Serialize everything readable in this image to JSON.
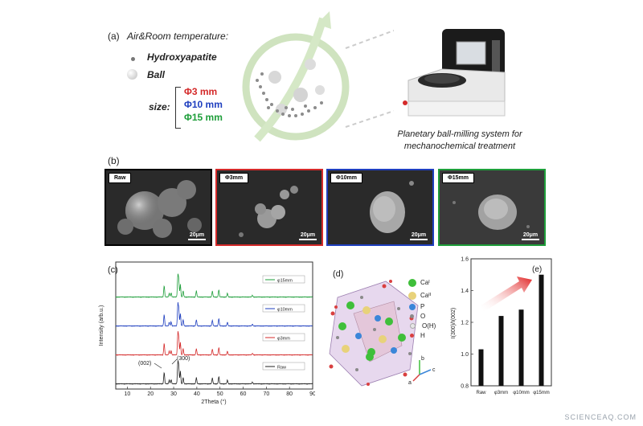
{
  "panel_a": {
    "label": "(a)",
    "condition": "Air&Room temperature:",
    "legend_hydroxyapatite": "Hydroxyapatite",
    "legend_ball": "Ball",
    "size_label": "size:",
    "sizes": [
      {
        "text": "Φ3 mm",
        "color": "#d42a2a"
      },
      {
        "text": "Φ10 mm",
        "color": "#1f3fbf"
      },
      {
        "text": "Φ15 mm",
        "color": "#1e9e3a"
      }
    ],
    "machine_caption_1": "Planetary ball-milling system for",
    "machine_caption_2": "mechanochemical treatment"
  },
  "panel_b": {
    "label": "(b)",
    "images": [
      {
        "tag": "Raw",
        "scale": "20μm",
        "border": "#000000"
      },
      {
        "tag": "Φ3mm",
        "scale": "20μm",
        "border": "#d42a2a"
      },
      {
        "tag": "Φ10mm",
        "scale": "20μm",
        "border": "#1f3fbf"
      },
      {
        "tag": "Φ15mm",
        "scale": "20μm",
        "border": "#1e9e3a"
      }
    ]
  },
  "panel_c": {
    "label": "(c)",
    "ylabel": "Intensity (arb.u.)",
    "xlabel": "2Theta (°)",
    "peak_002": "(002)",
    "peak_300": "(300)"
  },
  "panel_d": {
    "label": "(d)",
    "legend": [
      {
        "text": "Caᴵ",
        "color": "#3fbf3a"
      },
      {
        "text": "Caᴵᴵ",
        "color": "#e8d27a"
      },
      {
        "text": "P",
        "color": "#3b86d9"
      },
      {
        "text": "O",
        "color": "#8a8a8a"
      },
      {
        "text": "O(H)",
        "color": "#e6e6e6"
      },
      {
        "text": "H",
        "color": "#d94040"
      }
    ],
    "axis_a": "a",
    "axis_b": "b",
    "axis_c": "c"
  },
  "panel_e": {
    "label": "(e)",
    "ylabel": "I(300)/I(002)"
  },
  "watermark": "SCIENCEAQ.COM",
  "chart_data": [
    {
      "type": "line",
      "title": "",
      "xlabel": "2Theta (°)",
      "ylabel": "Intensity (arb.u.)",
      "xlim": [
        5,
        90
      ],
      "xticks": [
        10,
        20,
        30,
        40,
        50,
        60,
        70,
        80,
        90
      ],
      "legend_position": "right (one per trace)",
      "grid": false,
      "series": [
        {
          "name": "Raw",
          "color": "#222222",
          "offset": 0
        },
        {
          "name": "φ3mm",
          "color": "#d42a2a",
          "offset": 1
        },
        {
          "name": "φ10mm",
          "color": "#1f3fbf",
          "offset": 2
        },
        {
          "name": "φ15mm",
          "color": "#1e9e3a",
          "offset": 3
        }
      ],
      "peaks": [
        {
          "x": 25.9,
          "h": 0.55
        },
        {
          "x": 28.1,
          "h": 0.18
        },
        {
          "x": 28.9,
          "h": 0.2
        },
        {
          "x": 31.8,
          "h": 1.0
        },
        {
          "x": 32.2,
          "h": 0.75
        },
        {
          "x": 32.9,
          "h": 0.6
        },
        {
          "x": 34.1,
          "h": 0.3
        },
        {
          "x": 39.8,
          "h": 0.3
        },
        {
          "x": 46.7,
          "h": 0.28
        },
        {
          "x": 49.5,
          "h": 0.35
        },
        {
          "x": 53.2,
          "h": 0.18
        },
        {
          "x": 64.0,
          "h": 0.08
        }
      ]
    },
    {
      "type": "bar",
      "title": "",
      "xlabel": "",
      "ylabel": "I(300)/I(002)",
      "categories": [
        "Raw",
        "φ3mm",
        "φ10mm",
        "φ15mm"
      ],
      "values": [
        1.03,
        1.24,
        1.28,
        1.5
      ],
      "ylim": [
        0.8,
        1.6
      ],
      "yticks": [
        0.8,
        1.0,
        1.2,
        1.4,
        1.6
      ],
      "grid": false
    }
  ]
}
